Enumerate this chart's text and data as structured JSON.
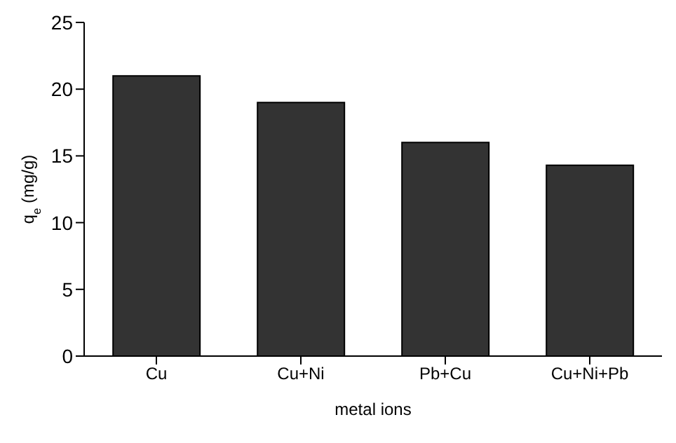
{
  "chart_data": {
    "type": "bar",
    "xlabel": "metal ions",
    "ylabel": "q$_{e}$ (mg/g)",
    "categories": [
      "Cu",
      "Cu+Ni",
      "Pb+Cu",
      "Cu+Ni+Pb"
    ],
    "values": [
      21,
      19,
      16,
      14.3
    ],
    "color": "#333333",
    "ylim": [
      0,
      25
    ],
    "yticks": [
      0,
      5,
      10,
      15,
      20,
      25
    ],
    "grid": false,
    "legend": false
  }
}
